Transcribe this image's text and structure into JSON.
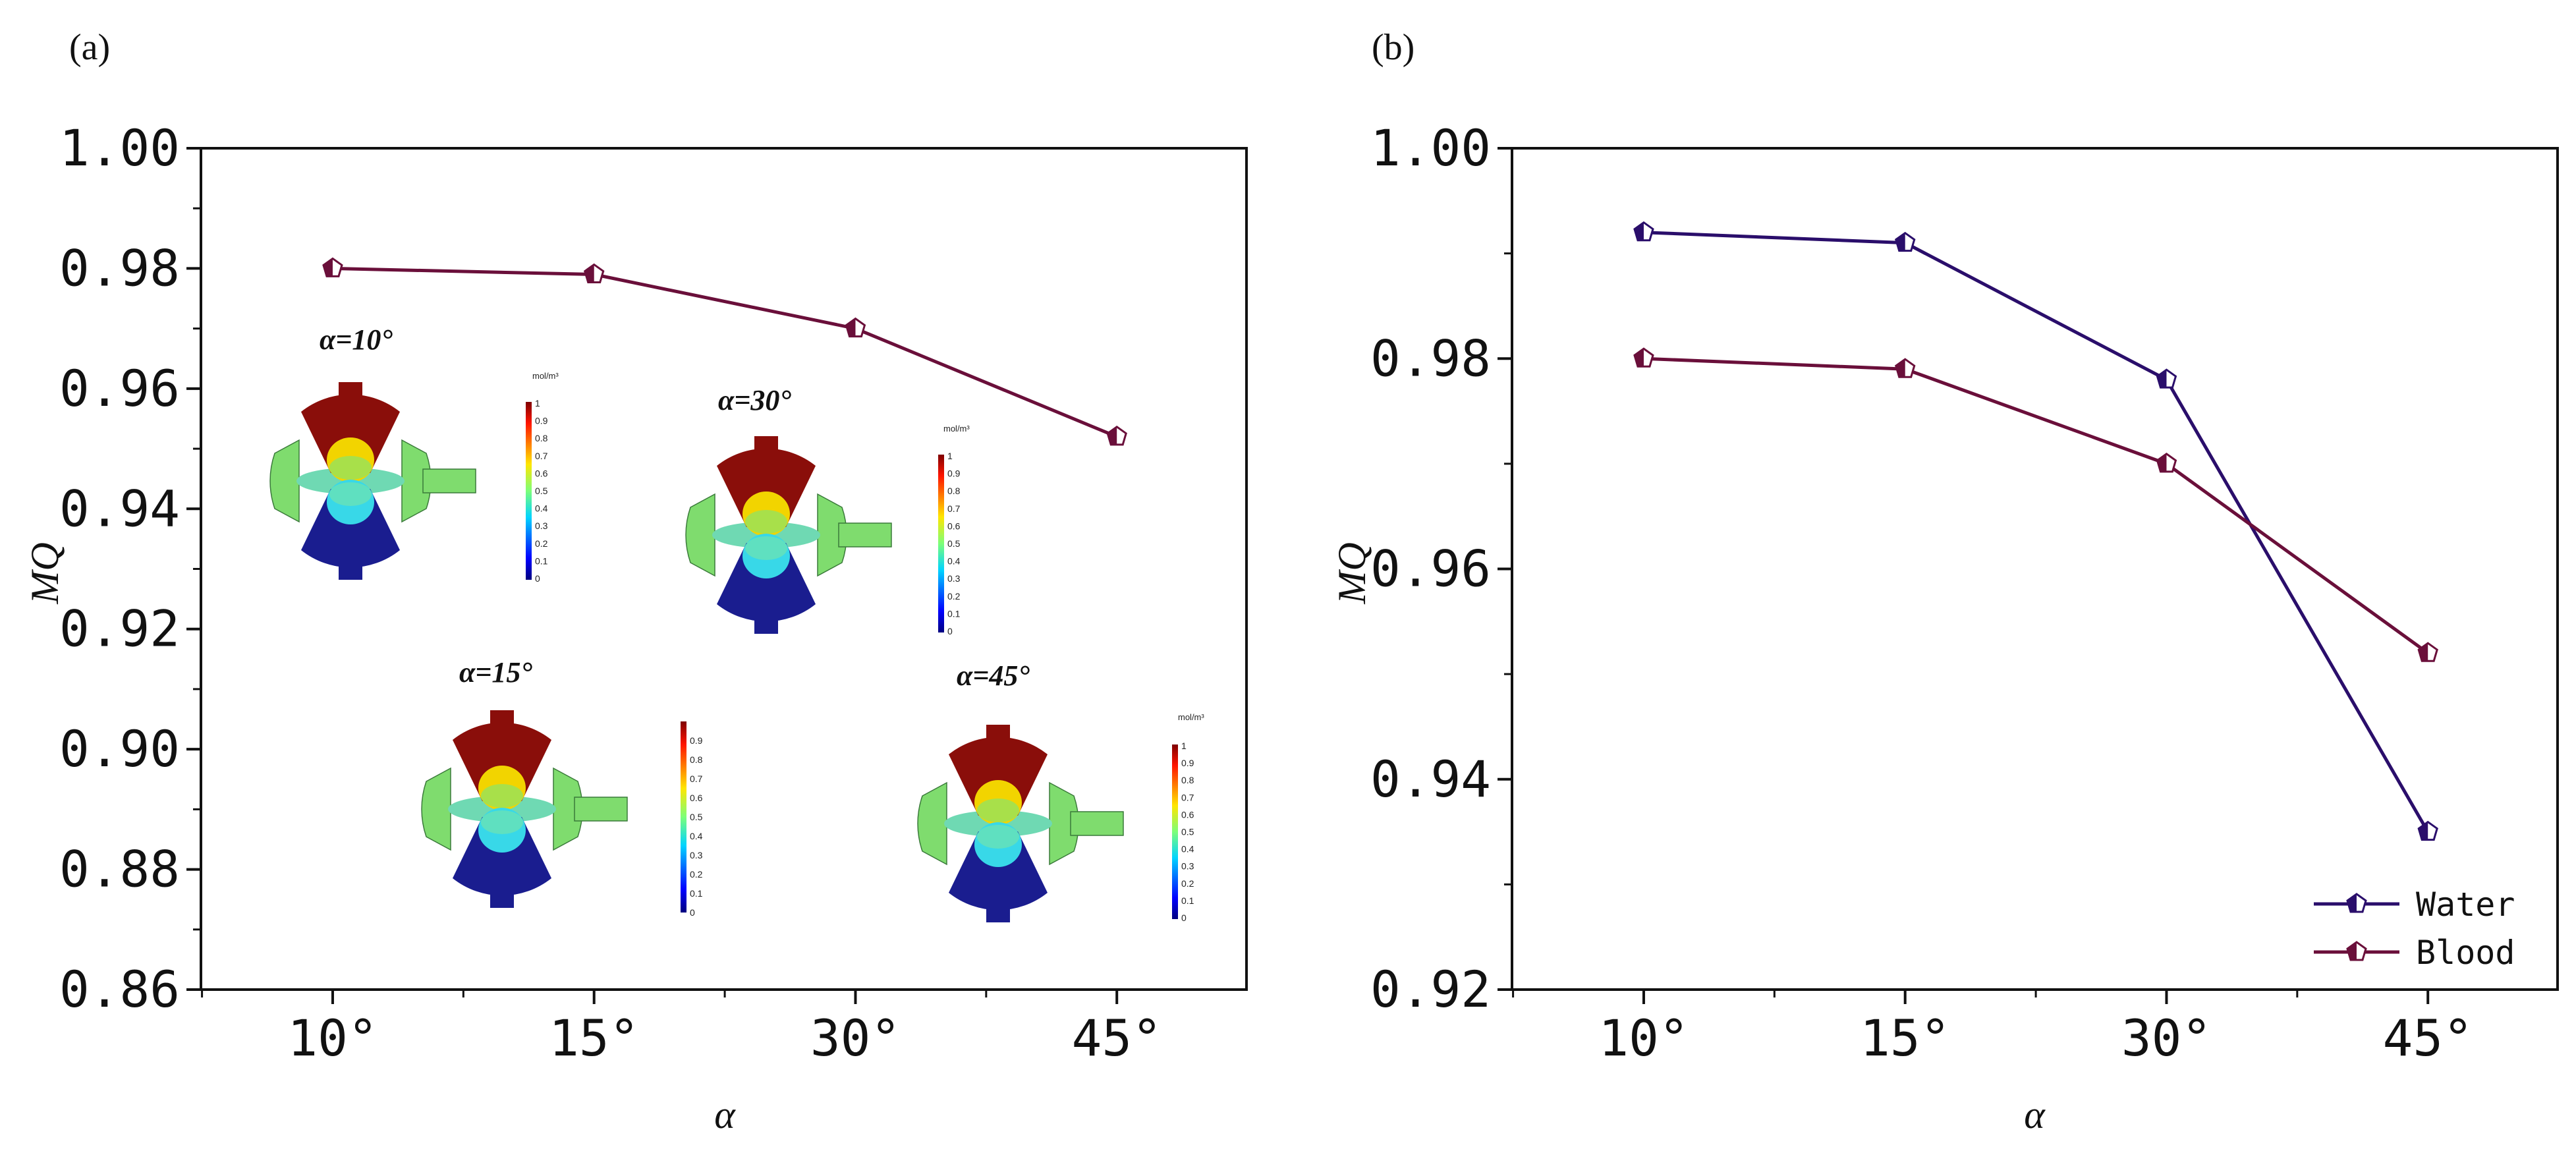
{
  "chart_data": [
    {
      "panel": "(a)",
      "type": "line",
      "categories": [
        "10°",
        "15°",
        "30°",
        "45°"
      ],
      "series": [
        {
          "name": "Blood",
          "values": [
            0.98,
            0.979,
            0.97,
            0.952
          ],
          "color": "#6a0f3a"
        }
      ],
      "xlabel": "α",
      "ylabel": "MQ",
      "ylim": [
        0.86,
        1.0
      ],
      "yticks": [
        "0.86",
        "0.88",
        "0.90",
        "0.92",
        "0.94",
        "0.96",
        "0.98",
        "1.00"
      ],
      "insets": [
        {
          "label": "α=10°",
          "unit": "mol/m³",
          "scale": [
            "1",
            "0.9",
            "0.8",
            "0.7",
            "0.6",
            "0.5",
            "0.4",
            "0.3",
            "0.2",
            "0.1",
            "0"
          ]
        },
        {
          "label": "α=30°",
          "unit": "mol/m³",
          "scale": [
            "1",
            "0.9",
            "0.8",
            "0.7",
            "0.6",
            "0.5",
            "0.4",
            "0.3",
            "0.2",
            "0.1",
            "0"
          ]
        },
        {
          "label": "α=15°",
          "unit": "",
          "scale": [
            "0.9",
            "0.8",
            "0.7",
            "0.6",
            "0.5",
            "0.4",
            "0.3",
            "0.2",
            "0.1",
            "0"
          ]
        },
        {
          "label": "α=45°",
          "unit": "mol/m³",
          "scale": [
            "1",
            "0.9",
            "0.8",
            "0.7",
            "0.6",
            "0.5",
            "0.4",
            "0.3",
            "0.2",
            "0.1",
            "0"
          ]
        }
      ]
    },
    {
      "panel": "(b)",
      "type": "line",
      "categories": [
        "10°",
        "15°",
        "30°",
        "45°"
      ],
      "series": [
        {
          "name": "Water",
          "values": [
            0.992,
            0.991,
            0.978,
            0.935
          ],
          "color": "#2a0e6b"
        },
        {
          "name": "Blood",
          "values": [
            0.98,
            0.979,
            0.97,
            0.952
          ],
          "color": "#6a0f3a"
        }
      ],
      "xlabel": "α",
      "ylabel": "MQ",
      "ylim": [
        0.92,
        1.0
      ],
      "yticks": [
        "0.92",
        "0.94",
        "0.96",
        "0.98",
        "1.00"
      ],
      "legend": "bottom-right"
    }
  ]
}
